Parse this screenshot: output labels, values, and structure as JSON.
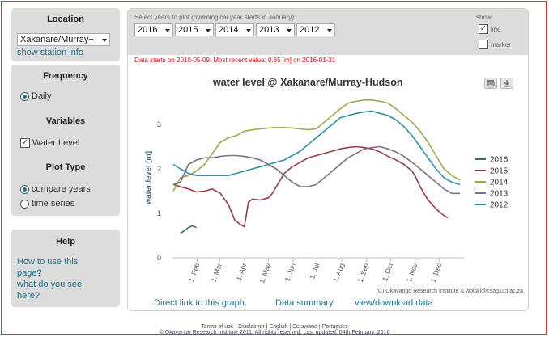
{
  "sidebar": {
    "location": {
      "title": "Location",
      "selected": "Xakanare/Murray+",
      "link": "show station info"
    },
    "frequency": {
      "title": "Frequency",
      "option": "Daily"
    },
    "variables": {
      "title": "Variables",
      "option": "Water Level"
    },
    "plot_type": {
      "title": "Plot Type",
      "options": [
        "compare years",
        "time series"
      ],
      "selected": "compare years"
    },
    "help": {
      "title": "Help",
      "link1": "How to use this page?",
      "link2": "what do you see here?"
    }
  },
  "controls": {
    "years_label": "Select years to plot (hydrological year starts in January):",
    "years": [
      "2016",
      "2015",
      "2014",
      "2013",
      "2012"
    ],
    "show_label": "show:",
    "line_label": "line",
    "line_checked": true,
    "marker_label": "marker",
    "marker_checked": false,
    "info_text": "Data starts on 2010-05-09. Most recent value: 0.65 [m] on 2016-01-31"
  },
  "chart_data": {
    "type": "line",
    "title": "water level @ Xakanare/Murray-Hudson",
    "xlabel": "",
    "ylabel": "water level [m]",
    "ylim": [
      0,
      3.6
    ],
    "yticks": [
      0,
      1,
      2,
      3
    ],
    "xtick_labels": [
      "1. Feb",
      "1. Mar",
      "1. Apr",
      "1. May",
      "1. Jun",
      "1. Jul",
      "1. Aug",
      "1. Sep",
      "1. Oct",
      "1. Nov",
      "1. Dec"
    ],
    "x_unit": "day of hydrological year",
    "credit": "(C) Okavango Research Institute & wolski@csag.uct.ac.za",
    "legend_position": "right",
    "series": [
      {
        "name": "2016",
        "color": "#3d6b73",
        "x": [
          10,
          20,
          25,
          30
        ],
        "y": [
          0.55,
          0.68,
          0.72,
          0.68
        ]
      },
      {
        "name": "2015",
        "color": "#a03a4a",
        "x": [
          1,
          10,
          20,
          30,
          40,
          50,
          60,
          70,
          78,
          85,
          90,
          95,
          100,
          110,
          120,
          125,
          130,
          140,
          150,
          160,
          170,
          180,
          190,
          200,
          210,
          220,
          230,
          240,
          250,
          260,
          270,
          280,
          290,
          300,
          305,
          310,
          320,
          330,
          340,
          345
        ],
        "y": [
          1.65,
          1.6,
          1.55,
          1.48,
          1.5,
          1.55,
          1.45,
          1.2,
          0.85,
          0.75,
          0.7,
          1.25,
          1.32,
          1.3,
          1.35,
          1.45,
          1.6,
          1.9,
          2.05,
          2.15,
          2.25,
          2.3,
          2.35,
          2.4,
          2.45,
          2.48,
          2.5,
          2.48,
          2.45,
          2.38,
          2.28,
          2.2,
          2.1,
          1.95,
          1.8,
          1.6,
          1.3,
          1.1,
          0.95,
          0.9
        ]
      },
      {
        "name": "2014",
        "color": "#9aaa4e",
        "x": [
          1,
          10,
          20,
          30,
          40,
          50,
          60,
          70,
          80,
          90,
          100,
          110,
          120,
          130,
          140,
          150,
          160,
          170,
          180,
          190,
          200,
          210,
          220,
          230,
          240,
          250,
          260,
          270,
          280,
          290,
          300,
          310,
          320,
          330,
          340,
          350,
          360
        ],
        "y": [
          1.5,
          1.8,
          1.85,
          1.95,
          2.1,
          2.35,
          2.6,
          2.7,
          2.75,
          2.85,
          2.88,
          2.9,
          2.92,
          2.93,
          2.93,
          2.92,
          2.9,
          2.88,
          2.9,
          3.05,
          3.2,
          3.35,
          3.48,
          3.52,
          3.55,
          3.55,
          3.52,
          3.48,
          3.35,
          3.2,
          3.05,
          2.85,
          2.6,
          2.3,
          2.0,
          1.85,
          1.75
        ]
      },
      {
        "name": "2013",
        "color": "#7e6f86",
        "x": [
          1,
          10,
          20,
          30,
          40,
          50,
          60,
          70,
          80,
          90,
          100,
          110,
          120,
          130,
          140,
          150,
          160,
          170,
          180,
          190,
          200,
          210,
          220,
          230,
          240,
          250,
          260,
          270,
          280,
          290,
          300,
          310,
          320,
          330,
          340,
          350,
          360
        ],
        "y": [
          1.65,
          1.7,
          2.1,
          2.2,
          2.25,
          2.25,
          2.28,
          2.3,
          2.3,
          2.28,
          2.25,
          2.2,
          2.1,
          2.0,
          1.85,
          1.7,
          1.6,
          1.6,
          1.65,
          1.8,
          1.95,
          2.1,
          2.25,
          2.35,
          2.45,
          2.48,
          2.5,
          2.45,
          2.38,
          2.28,
          2.15,
          2.0,
          1.85,
          1.7,
          1.55,
          1.45,
          1.45
        ]
      },
      {
        "name": "2012",
        "color": "#2a93a8",
        "x": [
          1,
          10,
          20,
          30,
          40,
          50,
          60,
          70,
          80,
          90,
          100,
          110,
          120,
          130,
          140,
          150,
          160,
          170,
          180,
          190,
          200,
          210,
          220,
          230,
          240,
          250,
          260,
          270,
          280,
          290,
          300,
          310,
          320,
          330,
          340,
          350,
          360
        ],
        "y": [
          2.1,
          2.0,
          1.9,
          1.85,
          1.85,
          1.85,
          1.85,
          1.85,
          1.9,
          1.95,
          2.0,
          2.05,
          2.1,
          2.15,
          2.2,
          2.3,
          2.4,
          2.55,
          2.7,
          2.85,
          3.0,
          3.15,
          3.2,
          3.25,
          3.28,
          3.3,
          3.25,
          3.2,
          3.1,
          2.95,
          2.75,
          2.5,
          2.25,
          2.0,
          1.8,
          1.7,
          1.65
        ]
      }
    ]
  },
  "links": {
    "direct": "Direct link to this graph.",
    "summary": "Data summary",
    "download": "view/download data"
  },
  "footer": {
    "line1": "Terms of use  |  Disclaimer  |  English  |  Setswana  |  Portugues",
    "line2": "© Okavango Research Institute 2011.  All rights reserved. Last updated: 04th February, 2016"
  }
}
